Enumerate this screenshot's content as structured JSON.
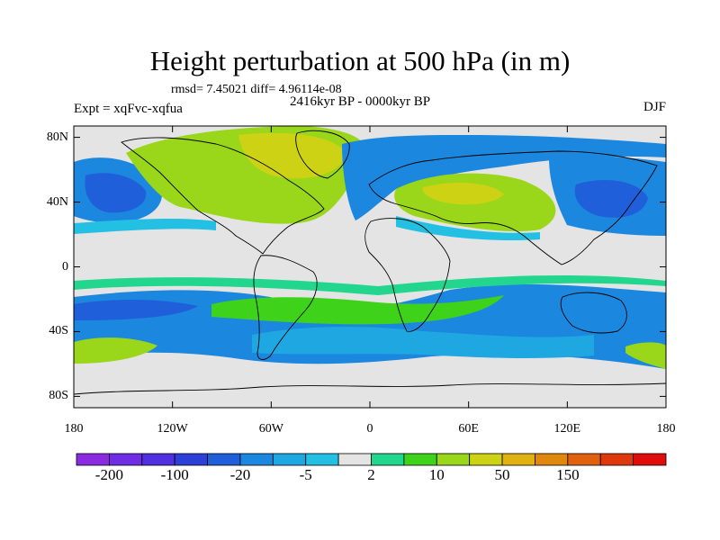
{
  "title": "Height perturbation at 500 hPa (in m)",
  "stats": "rmsd= 7.45021 diff= 4.96114e-08",
  "experiment": "Expt = xqFvc-xqfua",
  "period": "2416kyr BP - 0000kyr BP",
  "season": "DJF",
  "y_ticks": [
    {
      "label": "80N",
      "lat": 80
    },
    {
      "label": "40N",
      "lat": 40
    },
    {
      "label": "0",
      "lat": 0
    },
    {
      "label": "40S",
      "lat": -40
    },
    {
      "label": "80S",
      "lat": -80
    }
  ],
  "x_ticks": [
    {
      "label": "180",
      "lon": -180
    },
    {
      "label": "120W",
      "lon": -120
    },
    {
      "label": "60W",
      "lon": -60
    },
    {
      "label": "0",
      "lon": 0
    },
    {
      "label": "60E",
      "lon": 60
    },
    {
      "label": "120E",
      "lon": 120
    },
    {
      "label": "180",
      "lon": 180
    }
  ],
  "colorbar": {
    "colors": [
      "#8a2be2",
      "#6f2ee6",
      "#4f2fe0",
      "#2c3fd6",
      "#1f5fd9",
      "#1c87de",
      "#1fa7e2",
      "#23c0e3",
      "#e4e4e4",
      "#22d68e",
      "#3fd21a",
      "#9ad61a",
      "#cdd214",
      "#e0b20f",
      "#e0880d",
      "#e0600d",
      "#e0380d",
      "#e00d0d"
    ],
    "labels": [
      {
        "text": "-200",
        "boundary": 1
      },
      {
        "text": "-100",
        "boundary": 3
      },
      {
        "text": "-20",
        "boundary": 5
      },
      {
        "text": "-5",
        "boundary": 7
      },
      {
        "text": "2",
        "boundary": 9
      },
      {
        "text": "10",
        "boundary": 11
      },
      {
        "text": "50",
        "boundary": 13
      },
      {
        "text": "150",
        "boundary": 15
      }
    ]
  },
  "field_colors": {
    "neutral": "#e4e4e4",
    "light_blue": "#23c0e3",
    "mid_blue": "#1fa7e2",
    "blue": "#1c87de",
    "deep_blue": "#1f5fd9",
    "teal": "#22d68e",
    "green": "#3fd21a",
    "yellow_green": "#9ad61a",
    "olive": "#cdd214",
    "orange": "#e0b20f"
  }
}
